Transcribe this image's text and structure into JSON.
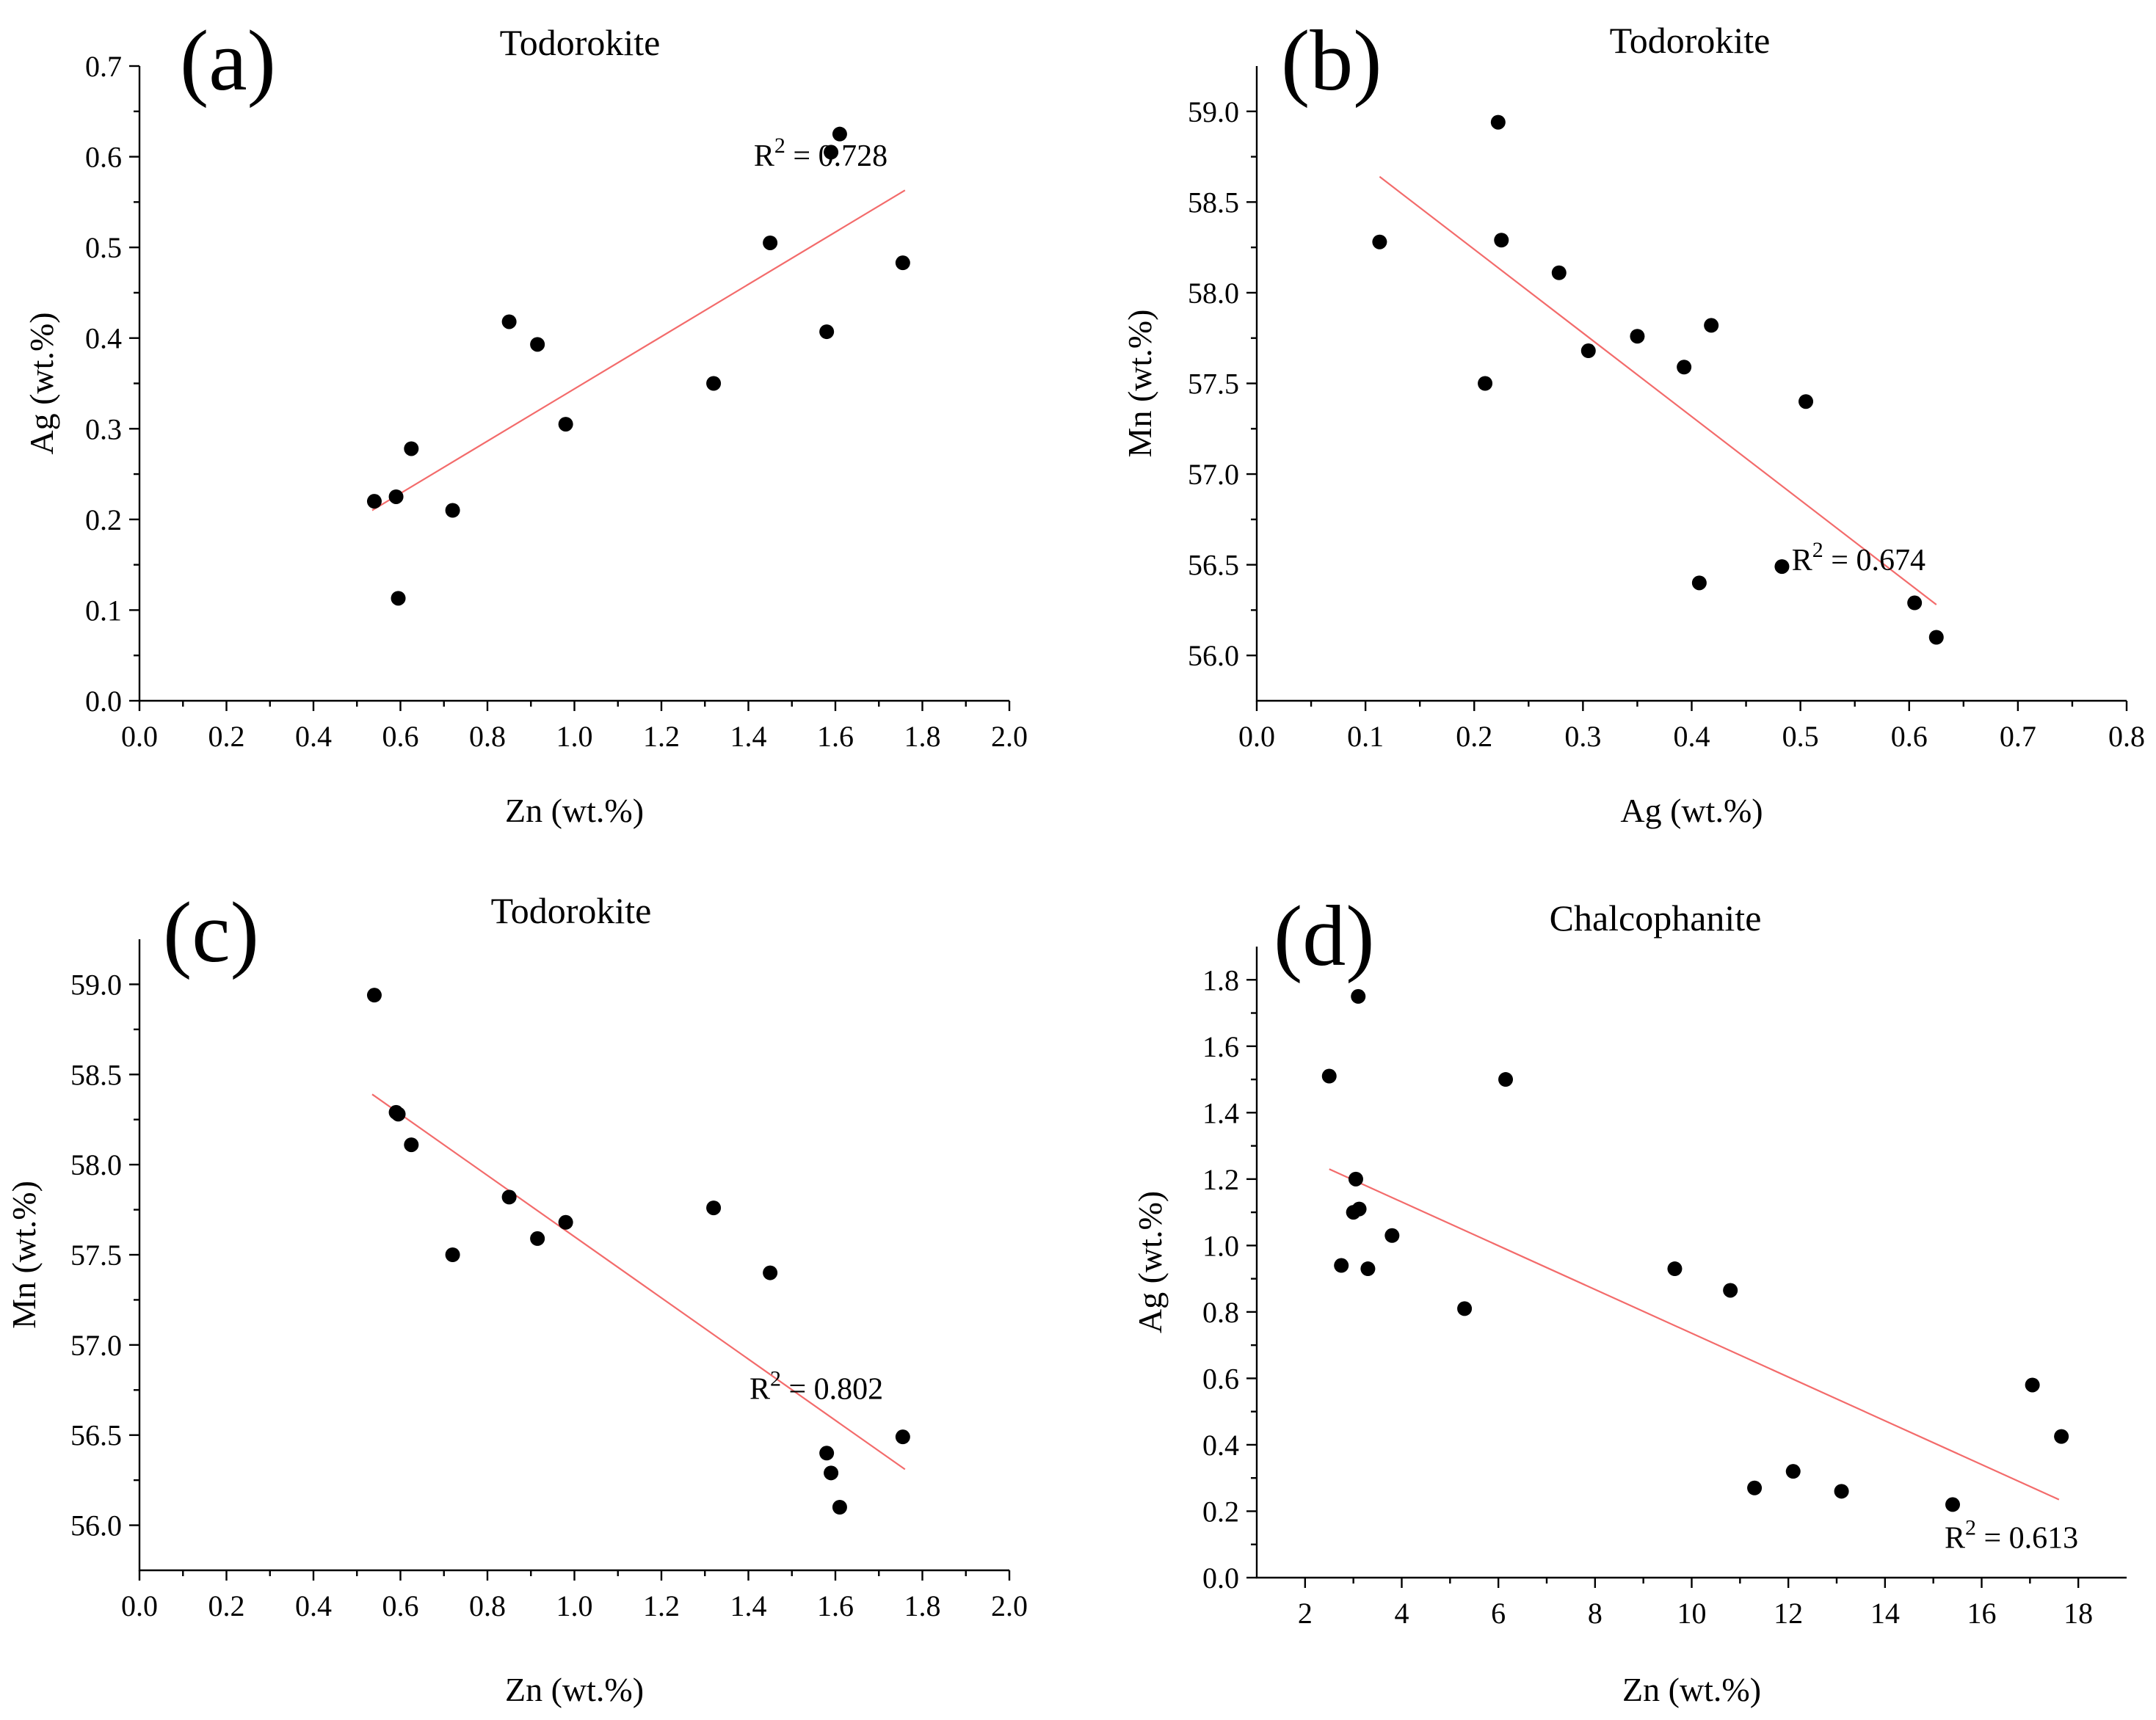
{
  "chart_data": [
    {
      "type": "scatter",
      "panel": "(a)",
      "title": "Todorokite",
      "xlabel": "Zn (wt.%)",
      "ylabel": "Ag (wt.%)",
      "xlim": [
        0,
        2.0
      ],
      "ylim": [
        0,
        0.7
      ],
      "xticks": [
        0,
        0.2,
        0.4,
        0.6,
        0.8,
        1.0,
        1.2,
        1.4,
        1.6,
        1.8,
        2.0
      ],
      "yticks": [
        0,
        0.1,
        0.2,
        0.3,
        0.4,
        0.5,
        0.6,
        0.7
      ],
      "tick_decimals": 1,
      "points": [
        [
          0.54,
          0.22
        ],
        [
          0.59,
          0.225
        ],
        [
          0.595,
          0.113
        ],
        [
          0.625,
          0.278
        ],
        [
          0.72,
          0.21
        ],
        [
          0.85,
          0.418
        ],
        [
          0.915,
          0.393
        ],
        [
          0.98,
          0.305
        ],
        [
          1.32,
          0.35
        ],
        [
          1.45,
          0.505
        ],
        [
          1.58,
          0.407
        ],
        [
          1.59,
          0.605
        ],
        [
          1.61,
          0.625
        ],
        [
          1.755,
          0.483
        ]
      ],
      "fit_line": [
        [
          0.535,
          0.21
        ],
        [
          1.76,
          0.563
        ]
      ],
      "r2_base": "R",
      "r2_sup": "2",
      "r2_value": " = 0.728",
      "r2_anchor": [
        1.72,
        0.59
      ]
    },
    {
      "type": "scatter",
      "panel": "(b)",
      "title": "Todorokite",
      "xlabel": "Ag (wt.%)",
      "ylabel": "Mn (wt.%)",
      "xlim": [
        0,
        0.8
      ],
      "ylim": [
        55.75,
        59.25
      ],
      "xticks": [
        0,
        0.1,
        0.2,
        0.3,
        0.4,
        0.5,
        0.6,
        0.7,
        0.8
      ],
      "yticks": [
        56.0,
        56.5,
        57.0,
        57.5,
        58.0,
        58.5,
        59.0
      ],
      "tick_decimals": 1,
      "points": [
        [
          0.113,
          58.28
        ],
        [
          0.21,
          57.5
        ],
        [
          0.222,
          58.94
        ],
        [
          0.225,
          58.29
        ],
        [
          0.278,
          58.11
        ],
        [
          0.305,
          57.68
        ],
        [
          0.35,
          57.76
        ],
        [
          0.393,
          57.59
        ],
        [
          0.407,
          56.4
        ],
        [
          0.418,
          57.82
        ],
        [
          0.483,
          56.49
        ],
        [
          0.505,
          57.4
        ],
        [
          0.605,
          56.29
        ],
        [
          0.625,
          56.1
        ]
      ],
      "fit_line": [
        [
          0.113,
          58.64
        ],
        [
          0.625,
          56.28
        ]
      ],
      "r2_base": "R",
      "r2_sup": "2",
      "r2_value": " = 0.674",
      "r2_anchor": [
        0.615,
        56.47
      ]
    },
    {
      "type": "scatter",
      "panel": "(c)",
      "title": "Todorokite",
      "xlabel": "Zn (wt.%)",
      "ylabel": "Mn (wt.%)",
      "xlim": [
        0,
        2.0
      ],
      "ylim": [
        55.75,
        59.25
      ],
      "xticks": [
        0,
        0.2,
        0.4,
        0.6,
        0.8,
        1.0,
        1.2,
        1.4,
        1.6,
        1.8,
        2.0
      ],
      "yticks": [
        56.0,
        56.5,
        57.0,
        57.5,
        58.0,
        58.5,
        59.0
      ],
      "tick_decimals": 1,
      "points": [
        [
          0.54,
          58.94
        ],
        [
          0.59,
          58.29
        ],
        [
          0.595,
          58.28
        ],
        [
          0.625,
          58.11
        ],
        [
          0.72,
          57.5
        ],
        [
          0.85,
          57.82
        ],
        [
          0.915,
          57.59
        ],
        [
          0.98,
          57.68
        ],
        [
          1.32,
          57.76
        ],
        [
          1.45,
          57.4
        ],
        [
          1.58,
          56.4
        ],
        [
          1.59,
          56.29
        ],
        [
          1.61,
          56.1
        ],
        [
          1.755,
          56.49
        ]
      ],
      "fit_line": [
        [
          0.535,
          58.39
        ],
        [
          1.76,
          56.31
        ]
      ],
      "r2_base": "R",
      "r2_sup": "2",
      "r2_value": " = 0.802",
      "r2_anchor": [
        1.71,
        56.7
      ]
    },
    {
      "type": "scatter",
      "panel": "(d)",
      "title": "Chalcophanite",
      "xlabel": "Zn (wt.%)",
      "ylabel": "Ag (wt.%)",
      "xlim": [
        1,
        19
      ],
      "ylim": [
        0,
        1.9
      ],
      "xticks": [
        2,
        4,
        6,
        8,
        10,
        12,
        14,
        16,
        18
      ],
      "yticks": [
        0,
        0.2,
        0.4,
        0.6,
        0.8,
        1.0,
        1.2,
        1.4,
        1.6,
        1.8
      ],
      "tick_decimals_y": 1,
      "tick_decimals_x": 0,
      "points": [
        [
          2.5,
          1.51
        ],
        [
          2.75,
          0.94
        ],
        [
          3.0,
          1.1
        ],
        [
          3.05,
          1.2
        ],
        [
          3.1,
          1.75
        ],
        [
          3.12,
          1.11
        ],
        [
          3.3,
          0.93
        ],
        [
          3.8,
          1.03
        ],
        [
          5.3,
          0.81
        ],
        [
          6.15,
          1.5
        ],
        [
          9.65,
          0.93
        ],
        [
          10.8,
          0.865
        ],
        [
          11.3,
          0.27
        ],
        [
          12.1,
          0.32
        ],
        [
          13.1,
          0.26
        ],
        [
          15.4,
          0.22
        ],
        [
          17.05,
          0.58
        ],
        [
          17.65,
          0.425
        ]
      ],
      "fit_line": [
        [
          2.5,
          1.23
        ],
        [
          17.6,
          0.235
        ]
      ],
      "r2_base": "R",
      "r2_sup": "2",
      "r2_value": " = 0.613",
      "r2_anchor": [
        18.0,
        0.09
      ]
    }
  ]
}
